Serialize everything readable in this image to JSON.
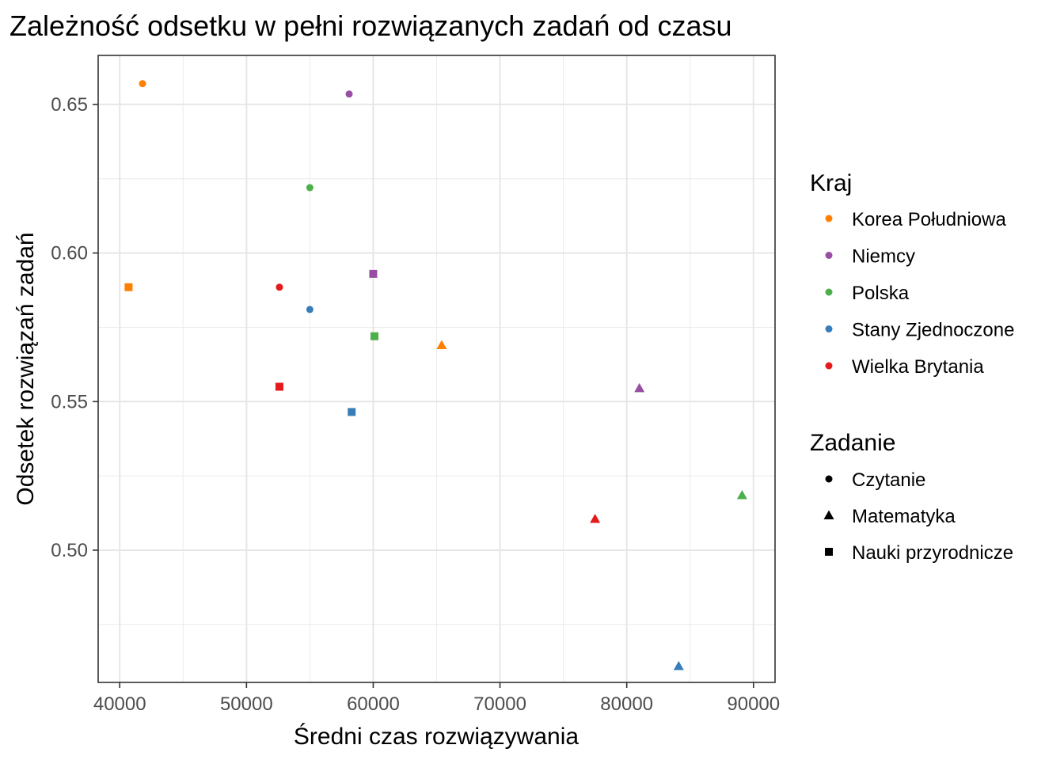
{
  "chart_data": {
    "type": "scatter",
    "title": "Zależność odsetku w pełni rozwiązanych zadań od czasu",
    "xlabel": "Średni czas rozwiązywania",
    "ylabel": "Odsetek rozwiązań zadań",
    "xlim": [
      38300,
      91700
    ],
    "ylim": [
      0.4555,
      0.6665
    ],
    "x_ticks": [
      40000,
      50000,
      60000,
      70000,
      80000,
      90000
    ],
    "x_tick_labels": [
      "40000",
      "50000",
      "60000",
      "70000",
      "80000",
      "90000"
    ],
    "y_ticks": [
      0.5,
      0.55,
      0.6,
      0.65
    ],
    "y_tick_labels": [
      "0.50",
      "0.55",
      "0.60",
      "0.65"
    ],
    "grid": true,
    "legend_position": "right",
    "color_legend": {
      "title": "Kraj",
      "entries": [
        {
          "label": "Korea Południowa",
          "color": "#ff7f00"
        },
        {
          "label": "Niemcy",
          "color": "#984ea3"
        },
        {
          "label": "Polska",
          "color": "#4daf4a"
        },
        {
          "label": "Stany Zjednoczone",
          "color": "#377eb8"
        },
        {
          "label": "Wielka Brytania",
          "color": "#e41a1c"
        }
      ]
    },
    "shape_legend": {
      "title": "Zadanie",
      "entries": [
        {
          "label": "Czytanie",
          "shape": "circle"
        },
        {
          "label": "Matematyka",
          "shape": "triangle"
        },
        {
          "label": "Nauki przyrodnicze",
          "shape": "square"
        }
      ]
    },
    "points": [
      {
        "country": "Korea Południowa",
        "task": "Czytanie",
        "x": 41800,
        "y": 0.657
      },
      {
        "country": "Korea Południowa",
        "task": "Nauki przyrodnicze",
        "x": 40700,
        "y": 0.5885
      },
      {
        "country": "Korea Południowa",
        "task": "Matematyka",
        "x": 65400,
        "y": 0.569
      },
      {
        "country": "Niemcy",
        "task": "Czytanie",
        "x": 58100,
        "y": 0.6535
      },
      {
        "country": "Niemcy",
        "task": "Nauki przyrodnicze",
        "x": 60000,
        "y": 0.593
      },
      {
        "country": "Niemcy",
        "task": "Matematyka",
        "x": 81000,
        "y": 0.5545
      },
      {
        "country": "Polska",
        "task": "Czytanie",
        "x": 55000,
        "y": 0.622
      },
      {
        "country": "Polska",
        "task": "Nauki przyrodnicze",
        "x": 60100,
        "y": 0.572
      },
      {
        "country": "Polska",
        "task": "Matematyka",
        "x": 89100,
        "y": 0.5185
      },
      {
        "country": "Stany Zjednoczone",
        "task": "Czytanie",
        "x": 55000,
        "y": 0.581
      },
      {
        "country": "Stany Zjednoczone",
        "task": "Nauki przyrodnicze",
        "x": 58300,
        "y": 0.5465
      },
      {
        "country": "Stany Zjednoczone",
        "task": "Matematyka",
        "x": 84100,
        "y": 0.461
      },
      {
        "country": "Wielka Brytania",
        "task": "Czytanie",
        "x": 52600,
        "y": 0.5885
      },
      {
        "country": "Wielka Brytania",
        "task": "Nauki przyrodnicze",
        "x": 52600,
        "y": 0.555
      },
      {
        "country": "Wielka Brytania",
        "task": "Matematyka",
        "x": 77500,
        "y": 0.5105
      }
    ]
  }
}
